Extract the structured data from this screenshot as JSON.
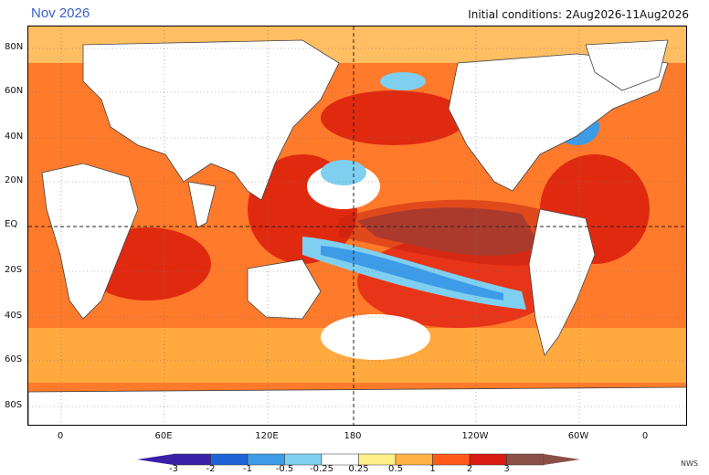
{
  "title": "Nov 2026",
  "initial_conditions": "Initial conditions: 2Aug2026-11Aug2026",
  "credit": "NWS",
  "lat_labels": [
    "80N",
    "60N",
    "40N",
    "20N",
    "EQ",
    "20S",
    "40S",
    "60S",
    "80S"
  ],
  "lon_labels": [
    "0",
    "60E",
    "120E",
    "180",
    "120W",
    "60W",
    "0"
  ],
  "colorbar": {
    "labels": [
      "-3",
      "-2",
      "-1",
      "-0.5",
      "-0.25",
      "0.25",
      "0.5",
      "1",
      "2",
      "3"
    ],
    "colors": [
      "#3a1fa8",
      "#1e64d8",
      "#3d9be8",
      "#7fd0f0",
      "#ffffff",
      "#fff08a",
      "#ffb347",
      "#ff5a1a",
      "#d91a12",
      "#8a5048"
    ]
  },
  "palette": {
    "land": "#ffffff",
    "strong_warm": "#e02a10",
    "warm": "#ff6a20",
    "mild_warm": "#ffae40",
    "light_warm": "#ffe07a",
    "extreme": "#8a5a50",
    "cool": "#7fd0f0",
    "cold": "#3d9be8",
    "coldest": "#1e64d8"
  }
}
